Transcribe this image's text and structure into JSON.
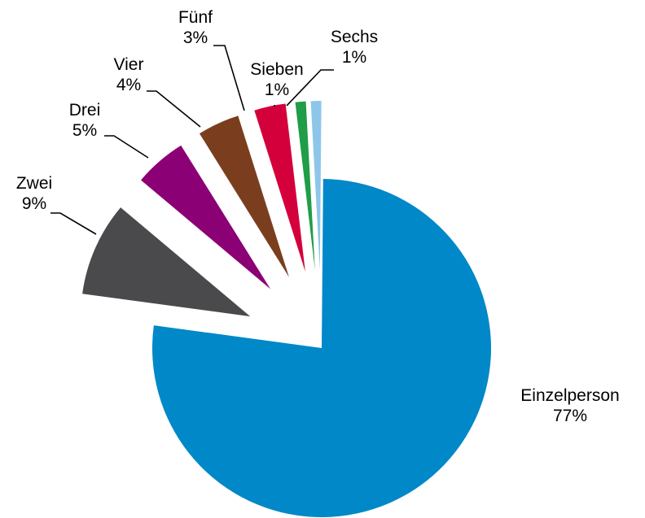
{
  "chart_data": {
    "type": "pie",
    "categories": [
      "Einzelperson",
      "Zwei",
      "Drei",
      "Vier",
      "Fünf",
      "Sieben",
      "Sechs"
    ],
    "values": [
      77,
      9,
      5,
      4,
      3,
      1,
      1
    ],
    "labels": [
      "77%",
      "9%",
      "5%",
      "4%",
      "3%",
      "1%",
      "1%"
    ],
    "colors": [
      "#0088c8",
      "#4a4a4c",
      "#8c0076",
      "#7a3e1e",
      "#d4003c",
      "#1f9d47",
      "#8ec6ea"
    ],
    "exploded": true,
    "legend": "none",
    "title": ""
  }
}
